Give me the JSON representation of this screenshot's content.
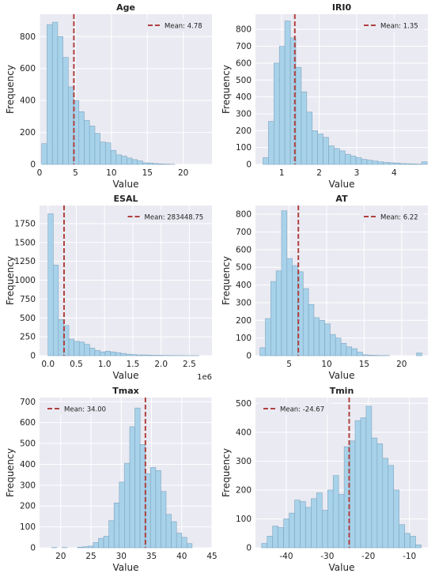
{
  "colors": {
    "plot_bg": "#EAEAF2",
    "grid": "#FFFFFF",
    "bar_fill": "#A7D2EA",
    "bar_edge": "#7FA4BE",
    "mean_line": "#B0413E"
  },
  "chart_data": [
    {
      "type": "bar",
      "title": "Age",
      "xlabel": "Value",
      "ylabel": "Frequency",
      "xlim": [
        0,
        24
      ],
      "ylim": [
        0,
        940
      ],
      "xticks": [
        "0",
        "5",
        "10",
        "15",
        "20"
      ],
      "xtick_values": [
        0,
        5,
        10,
        15,
        20
      ],
      "yticks": [
        "0",
        "200",
        "400",
        "600",
        "800"
      ],
      "ytick_values": [
        0,
        200,
        400,
        600,
        800
      ],
      "bin_start": 0.3,
      "bin_width": 0.74,
      "counts": [
        130,
        875,
        890,
        800,
        670,
        485,
        400,
        330,
        275,
        240,
        195,
        140,
        135,
        88,
        60,
        52,
        40,
        30,
        22,
        10,
        8,
        5,
        3,
        2,
        1,
        0,
        0,
        0,
        0,
        0
      ],
      "mean": 4.78,
      "mean_label": "Mean: 4.78",
      "legend": "top-right"
    },
    {
      "type": "bar",
      "title": "IRI0",
      "xlabel": "Value",
      "ylabel": "Frequency",
      "xlim": [
        0.3,
        4.9
      ],
      "ylim": [
        0,
        890
      ],
      "xticks": [
        "1",
        "2",
        "3",
        "4"
      ],
      "xtick_values": [
        1,
        2,
        3,
        4
      ],
      "yticks": [
        "0",
        "100",
        "200",
        "300",
        "400",
        "500",
        "600",
        "700",
        "800"
      ],
      "ytick_values": [
        0,
        100,
        200,
        300,
        400,
        500,
        600,
        700,
        800
      ],
      "bin_start": 0.5,
      "bin_width": 0.146,
      "counts": [
        40,
        255,
        600,
        700,
        850,
        750,
        575,
        430,
        310,
        200,
        180,
        160,
        110,
        95,
        80,
        60,
        50,
        40,
        30,
        25,
        20,
        15,
        12,
        10,
        8,
        5,
        4,
        3,
        2,
        15
      ],
      "mean": 1.35,
      "mean_label": "Mean: 1.35",
      "legend": "top-right"
    },
    {
      "type": "bar",
      "title": "ESAL",
      "xlabel": "Value",
      "ylabel": "Frequency",
      "xlim": [
        -150000,
        2900000
      ],
      "ylim": [
        0,
        1990
      ],
      "xticks": [
        "0.0",
        "0.5",
        "1.0",
        "1.5",
        "2.0",
        "2.5"
      ],
      "xtick_values": [
        0,
        500000,
        1000000,
        1500000,
        2000000,
        2500000
      ],
      "yticks": [
        "0",
        "250",
        "500",
        "750",
        "1000",
        "1250",
        "1500",
        "1750"
      ],
      "ytick_values": [
        0,
        250,
        500,
        750,
        1000,
        1250,
        1500,
        1750
      ],
      "axis_exponent": "1e6",
      "bin_start": 0,
      "bin_width": 92000,
      "counts": [
        1880,
        1200,
        480,
        400,
        220,
        190,
        180,
        150,
        100,
        70,
        50,
        60,
        50,
        40,
        30,
        20,
        15,
        10,
        10,
        8,
        5,
        5,
        3,
        3,
        2,
        2,
        1,
        1,
        1,
        0
      ],
      "mean": 283448.75,
      "mean_label": "Mean: 283448.75",
      "legend": "top-right"
    },
    {
      "type": "bar",
      "title": "AT",
      "xlabel": "Value",
      "ylabel": "Frequency",
      "xlim": [
        0.5,
        23.5
      ],
      "ylim": [
        0,
        850
      ],
      "xticks": [
        "5",
        "10",
        "15",
        "20"
      ],
      "xtick_values": [
        5,
        10,
        15,
        20
      ],
      "yticks": [
        "0",
        "100",
        "200",
        "300",
        "400",
        "500",
        "600",
        "700",
        "800"
      ],
      "ytick_values": [
        0,
        100,
        200,
        300,
        400,
        500,
        600,
        700,
        800
      ],
      "bin_start": 1.1,
      "bin_width": 0.72,
      "counts": [
        45,
        210,
        420,
        480,
        820,
        550,
        510,
        475,
        380,
        290,
        215,
        200,
        180,
        120,
        100,
        70,
        50,
        40,
        20,
        5,
        3,
        2,
        1,
        1,
        0,
        0,
        0,
        0,
        0,
        15
      ],
      "mean": 6.22,
      "mean_label": "Mean: 6.22",
      "legend": "top-right"
    },
    {
      "type": "bar",
      "title": "Tmax",
      "xlabel": "Value",
      "ylabel": "Frequency",
      "xlim": [
        16.5,
        45
      ],
      "ylim": [
        0,
        720
      ],
      "xticks": [
        "20",
        "25",
        "30",
        "35",
        "40",
        "45"
      ],
      "xtick_values": [
        20,
        25,
        30,
        35,
        40,
        45
      ],
      "yticks": [
        "0",
        "100",
        "200",
        "300",
        "400",
        "500",
        "600",
        "700"
      ],
      "ytick_values": [
        0,
        100,
        200,
        300,
        400,
        500,
        600,
        700
      ],
      "bin_start": 18.5,
      "bin_width": 0.86,
      "counts": [
        1,
        0,
        1,
        0,
        0,
        3,
        5,
        8,
        25,
        45,
        55,
        130,
        215,
        315,
        405,
        580,
        670,
        495,
        355,
        385,
        370,
        270,
        160,
        125,
        70,
        50,
        20,
        0,
        0,
        0
      ],
      "mean": 34.0,
      "mean_label": "Mean: 34.00",
      "legend": "top-left"
    },
    {
      "type": "bar",
      "title": "Tmin",
      "xlabel": "Value",
      "ylabel": "Frequency",
      "xlim": [
        -47.5,
        -5.5
      ],
      "ylim": [
        0,
        520
      ],
      "xticks": [
        "-40",
        "-30",
        "-20",
        "-10"
      ],
      "xtick_values": [
        -40,
        -30,
        -20,
        -10
      ],
      "yticks": [
        "0",
        "100",
        "200",
        "300",
        "400",
        "500"
      ],
      "ytick_values": [
        0,
        100,
        200,
        300,
        400,
        500
      ],
      "bin_start": -46,
      "bin_width": 1.34,
      "counts": [
        15,
        40,
        75,
        70,
        100,
        120,
        165,
        160,
        140,
        170,
        190,
        130,
        200,
        250,
        185,
        350,
        370,
        440,
        450,
        490,
        380,
        360,
        310,
        285,
        200,
        80,
        50,
        40,
        10,
        0
      ],
      "mean": -24.67,
      "mean_label": "Mean: -24.67",
      "legend": "top-left"
    }
  ]
}
